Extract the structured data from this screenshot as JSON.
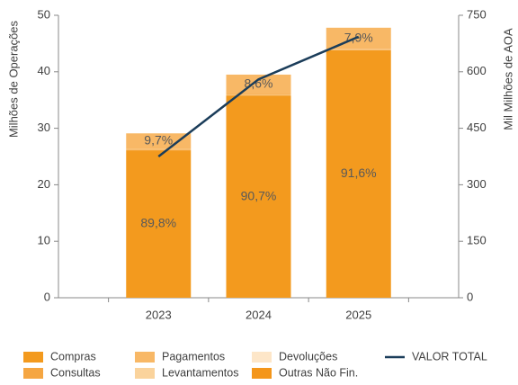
{
  "chart_data": {
    "type": "stacked-bar-line",
    "categories": [
      "2023",
      "2024",
      "2025"
    ],
    "y_label": "Milhões de Operações",
    "y2_label": "Mil Milhões de AOA",
    "ylim": [
      0,
      50
    ],
    "yticks": [
      0,
      10,
      20,
      30,
      40,
      50
    ],
    "y2lim": [
      0,
      750
    ],
    "y2ticks": [
      0,
      150,
      300,
      450,
      600,
      750
    ],
    "legend": "bottom",
    "series": [
      {
        "name": "Compras",
        "color": "#f39a1e",
        "values": [
          26.1,
          35.8,
          43.8
        ],
        "labels": [
          "89,8%",
          "90,7%",
          "91,6%"
        ]
      },
      {
        "name": "Consultas",
        "color": "#f5a642",
        "values": [
          0.1,
          0.1,
          0.1
        ]
      },
      {
        "name": "Levantamentos",
        "color": "#fad39c",
        "values": [
          0.1,
          0.1,
          0.1
        ]
      },
      {
        "name": "Devoluções",
        "color": "#fde6c8",
        "values": [
          0.0,
          0.0,
          0.0
        ]
      },
      {
        "name": "Outras Não Fin.",
        "color": "#f4961a",
        "values": [
          0.0,
          0.1,
          0.0
        ]
      },
      {
        "name": "Pagamentos",
        "color": "#f8b866",
        "values": [
          2.8,
          3.4,
          3.8
        ],
        "labels": [
          "9,7%",
          "8,6%",
          "7,9%"
        ]
      },
      {
        "name": "VALOR TOTAL",
        "color": "#1b3d5a",
        "type": "line",
        "axis": "y2",
        "values": [
          375,
          580,
          693
        ]
      }
    ]
  }
}
